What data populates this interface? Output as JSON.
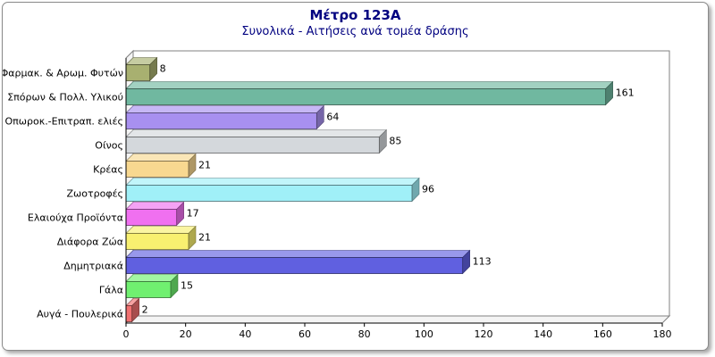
{
  "chart_data": {
    "type": "bar",
    "orientation": "horizontal",
    "title": "Μέτρο 123Α",
    "subtitle": "Συνολικά - Αιτήσεις ανά τομέα δράσης",
    "xlabel": "",
    "ylabel": "",
    "xlim": [
      0,
      180
    ],
    "x_ticks": [
      0,
      20,
      40,
      60,
      80,
      100,
      120,
      140,
      160,
      180
    ],
    "grid": false,
    "legend": "none",
    "categories": [
      "Φαρμακ. & Αρωμ. Φυτών",
      "Σπόρων & Πολλ. Υλικού",
      "Οπωροκ.-Επιτραπ. ελιές",
      "Οίνος",
      "Κρέας",
      "Ζωοτροφές",
      "Ελαιούχα Προϊόντα",
      "Διάφορα Ζώα",
      "Δημητριακά",
      "Γάλα",
      "Αυγά - Πουλερικά"
    ],
    "values": [
      8,
      161,
      64,
      85,
      21,
      96,
      17,
      21,
      113,
      15,
      2
    ],
    "colors": [
      "#a8b070",
      "#70b8a0",
      "#a890f0",
      "#d4d8dc",
      "#f8d890",
      "#a0f0f8",
      "#f070f0",
      "#f8f070",
      "#6060e0",
      "#70f070",
      "#f07070"
    ]
  }
}
